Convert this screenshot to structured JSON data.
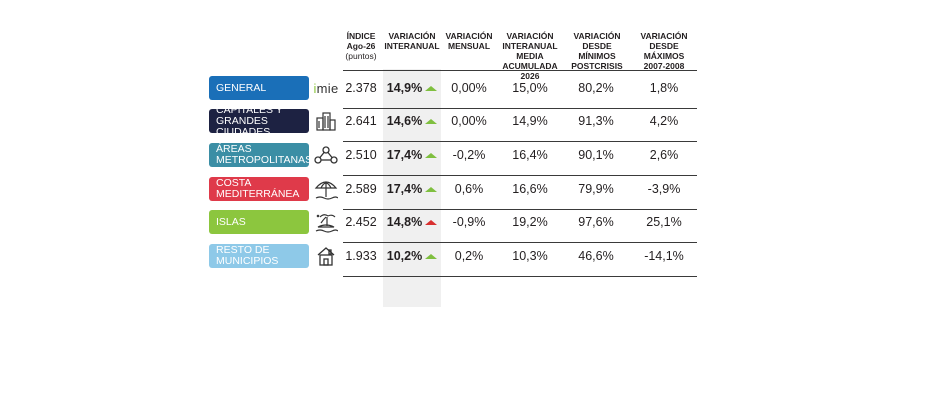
{
  "chart_data": {
    "type": "table",
    "headers": [
      {
        "title": "ÍNDICE",
        "lines": [
          "Ago-26"
        ],
        "sub": "(puntos)"
      },
      {
        "title": "VARIACIÓN",
        "lines": [
          "INTERANUAL"
        ]
      },
      {
        "title": "VARIACIÓN",
        "lines": [
          "MENSUAL"
        ]
      },
      {
        "title": "VARIACIÓN",
        "lines": [
          "INTERANUAL MEDIA",
          "ACUMULADA 2026"
        ]
      },
      {
        "title": "VARIACIÓN DESDE",
        "lines": [
          "MÍNIMOS",
          "POSTCRISIS"
        ]
      },
      {
        "title": "VARIACIÓN DESDE",
        "lines": [
          "MÁXIMOS",
          "2007-2008"
        ]
      }
    ],
    "logo_text": "imie",
    "rows": [
      {
        "label": "GENERAL",
        "color": "#1a6fb8",
        "icon": "imie-logo",
        "indice": "2.378",
        "interanual": "14,9%",
        "trend": "up",
        "mensual": "0,00%",
        "acumulada": "15,0%",
        "minimos": "80,2%",
        "maximos": "1,8%"
      },
      {
        "label": "CAPITALES Y GRANDES CIUDADES",
        "color": "#1d2242",
        "icon": "buildings-icon",
        "indice": "2.641",
        "interanual": "14,6%",
        "trend": "up",
        "mensual": "0,00%",
        "acumulada": "14,9%",
        "minimos": "91,3%",
        "maximos": "4,2%"
      },
      {
        "label": "ÁREAS METROPOLITANAS",
        "color": "#3b8ea5",
        "icon": "network-icon",
        "indice": "2.510",
        "interanual": "17,4%",
        "trend": "up",
        "mensual": "-0,2%",
        "acumulada": "16,4%",
        "minimos": "90,1%",
        "maximos": "2,6%"
      },
      {
        "label": "COSTA MEDITERRÁNEA",
        "color": "#df3a4a",
        "icon": "umbrella-icon",
        "indice": "2.589",
        "interanual": "17,4%",
        "trend": "up",
        "mensual": "0,6%",
        "acumulada": "16,6%",
        "minimos": "79,9%",
        "maximos": "-3,9%"
      },
      {
        "label": "ISLAS",
        "color": "#8cc63e",
        "icon": "island-icon",
        "indice": "2.452",
        "interanual": "14,8%",
        "trend": "down",
        "mensual": "-0,9%",
        "acumulada": "19,2%",
        "minimos": "97,6%",
        "maximos": "25,1%"
      },
      {
        "label": "RESTO DE MUNICIPIOS",
        "color": "#8ec9e8",
        "icon": "house-icon",
        "indice": "1.933",
        "interanual": "10,2%",
        "trend": "up",
        "mensual": "0,2%",
        "acumulada": "10,3%",
        "minimos": "46,6%",
        "maximos": "-14,1%"
      }
    ]
  }
}
